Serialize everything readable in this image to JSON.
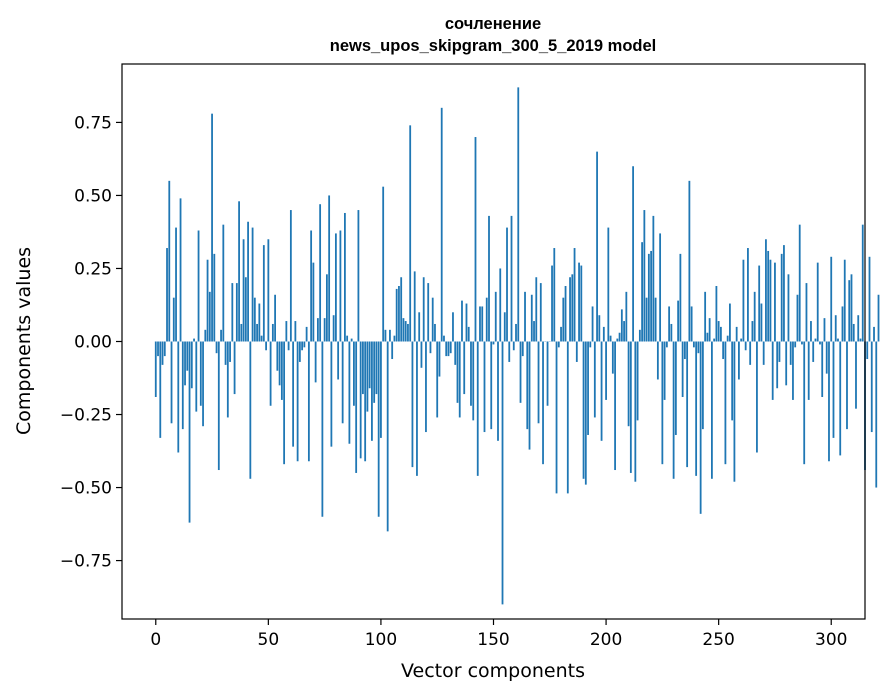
{
  "chart_data": {
    "type": "bar",
    "title": "сочленение",
    "subtitle": "news_upos_skipgram_300_5_2019 model",
    "xlabel": "Vector components",
    "ylabel": "Components values",
    "xlim": [
      -15,
      315
    ],
    "ylim": [
      -0.95,
      0.95
    ],
    "xticks": [
      0,
      50,
      100,
      150,
      200,
      250,
      300
    ],
    "xtick_labels": [
      "0",
      "50",
      "100",
      "150",
      "200",
      "250",
      "300"
    ],
    "yticks": [
      -0.75,
      -0.5,
      -0.25,
      0.0,
      0.25,
      0.5,
      0.75
    ],
    "ytick_labels": [
      "−0.75",
      "−0.50",
      "−0.25",
      "0.00",
      "0.25",
      "0.50",
      "0.75"
    ],
    "grid": false,
    "legend": false,
    "color": "#1f77b4",
    "x_start": 0,
    "values": [
      -0.19,
      -0.05,
      -0.33,
      -0.08,
      -0.05,
      0.32,
      0.55,
      -0.28,
      0.15,
      0.39,
      -0.38,
      0.49,
      -0.3,
      -0.15,
      -0.1,
      -0.62,
      -0.16,
      0.01,
      -0.24,
      0.38,
      -0.22,
      -0.29,
      0.04,
      0.28,
      0.17,
      0.78,
      0.3,
      -0.04,
      -0.44,
      0.04,
      0.4,
      -0.08,
      -0.26,
      -0.07,
      0.2,
      -0.18,
      0.2,
      0.48,
      0.06,
      0.35,
      0.22,
      0.41,
      -0.47,
      0.39,
      0.15,
      0.06,
      0.13,
      0.02,
      0.33,
      -0.03,
      0.35,
      -0.22,
      0.06,
      0.16,
      -0.1,
      -0.15,
      -0.2,
      -0.42,
      0.07,
      -0.03,
      0.45,
      -0.36,
      0.07,
      -0.41,
      -0.07,
      -0.03,
      -0.02,
      0.05,
      -0.41,
      0.38,
      0.27,
      -0.14,
      0.08,
      0.47,
      -0.6,
      0.08,
      0.23,
      0.5,
      -0.36,
      0.09,
      0.37,
      -0.13,
      0.38,
      -0.28,
      0.44,
      0.02,
      -0.35,
      0.01,
      -0.22,
      -0.45,
      0.45,
      -0.4,
      -0.18,
      -0.41,
      -0.24,
      -0.16,
      -0.34,
      -0.21,
      -0.18,
      -0.6,
      -0.33,
      0.53,
      0.04,
      -0.65,
      0.04,
      -0.06,
      0.02,
      0.18,
      0.19,
      0.22,
      0.08,
      0.07,
      0.06,
      0.74,
      -0.43,
      0.24,
      -0.46,
      0.1,
      -0.09,
      0.22,
      -0.31,
      0.2,
      -0.04,
      0.15,
      0.06,
      -0.26,
      -0.12,
      0.8,
      0.02,
      -0.05,
      -0.05,
      -0.04,
      0.1,
      -0.08,
      -0.21,
      -0.26,
      0.14,
      -0.18,
      0.13,
      0.05,
      -0.22,
      -0.27,
      0.7,
      -0.46,
      0.12,
      0.12,
      -0.31,
      0.15,
      0.43,
      -0.3,
      -0.01,
      0.17,
      -0.34,
      0.25,
      -0.9,
      0.1,
      0.39,
      -0.07,
      0.43,
      -0.03,
      0.06,
      0.87,
      -0.21,
      -0.05,
      0.17,
      -0.3,
      -0.37,
      0.16,
      0.07,
      0.22,
      -0.28,
      0.2,
      -0.42,
      0.0,
      -0.22,
      0.0,
      0.26,
      0.32,
      -0.52,
      -0.02,
      0.05,
      0.15,
      0.19,
      -0.52,
      0.22,
      0.23,
      0.32,
      -0.07,
      0.27,
      0.26,
      -0.47,
      -0.49,
      -0.32,
      -0.02,
      0.12,
      -0.26,
      0.65,
      0.09,
      -0.34,
      0.05,
      -0.2,
      0.39,
      0.02,
      -0.11,
      -0.44,
      0.01,
      0.03,
      0.11,
      0.07,
      0.17,
      -0.29,
      -0.45,
      0.6,
      -0.48,
      -0.27,
      0.04,
      0.34,
      0.45,
      0.15,
      0.3,
      0.31,
      0.43,
      0.15,
      -0.13,
      0.37,
      -0.42,
      -0.2,
      -0.02,
      0.12,
      0.06,
      -0.47,
      -0.32,
      0.14,
      0.3,
      -0.19,
      -0.06,
      -0.43,
      0.55,
      0.12,
      -0.02,
      -0.46,
      -0.04,
      -0.59,
      -0.3,
      0.17,
      0.03,
      0.08,
      -0.47,
      0.01,
      0.19,
      0.07,
      0.05,
      -0.06,
      -0.42,
      0.02,
      0.13,
      -0.27,
      -0.48,
      0.05,
      -0.13,
      0.01,
      0.28,
      -0.03,
      0.32,
      -0.08,
      0.07,
      0.17,
      -0.38,
      0.26,
      0.13,
      -0.08,
      0.35,
      0.31,
      0.28,
      -0.2,
      0.27,
      -0.16,
      -0.07,
      0.3,
      0.33,
      -0.15,
      0.23,
      -0.08,
      -0.2,
      -0.02,
      0.16,
      0.4,
      -0.01,
      -0.42,
      0.2,
      -0.2,
      0.07,
      -0.07,
      0.01,
      0.27,
      -0.01,
      -0.19,
      0.08,
      -0.11,
      -0.41,
      0.29,
      -0.33,
      0.09,
      0.01,
      -0.39,
      0.12,
      0.28,
      -0.3,
      0.21,
      0.23,
      0.06,
      -0.23,
      0.09,
      0.01,
      0.4,
      -0.44,
      -0.06,
      0.29,
      -0.31,
      0.05,
      -0.5,
      0.16
    ]
  }
}
